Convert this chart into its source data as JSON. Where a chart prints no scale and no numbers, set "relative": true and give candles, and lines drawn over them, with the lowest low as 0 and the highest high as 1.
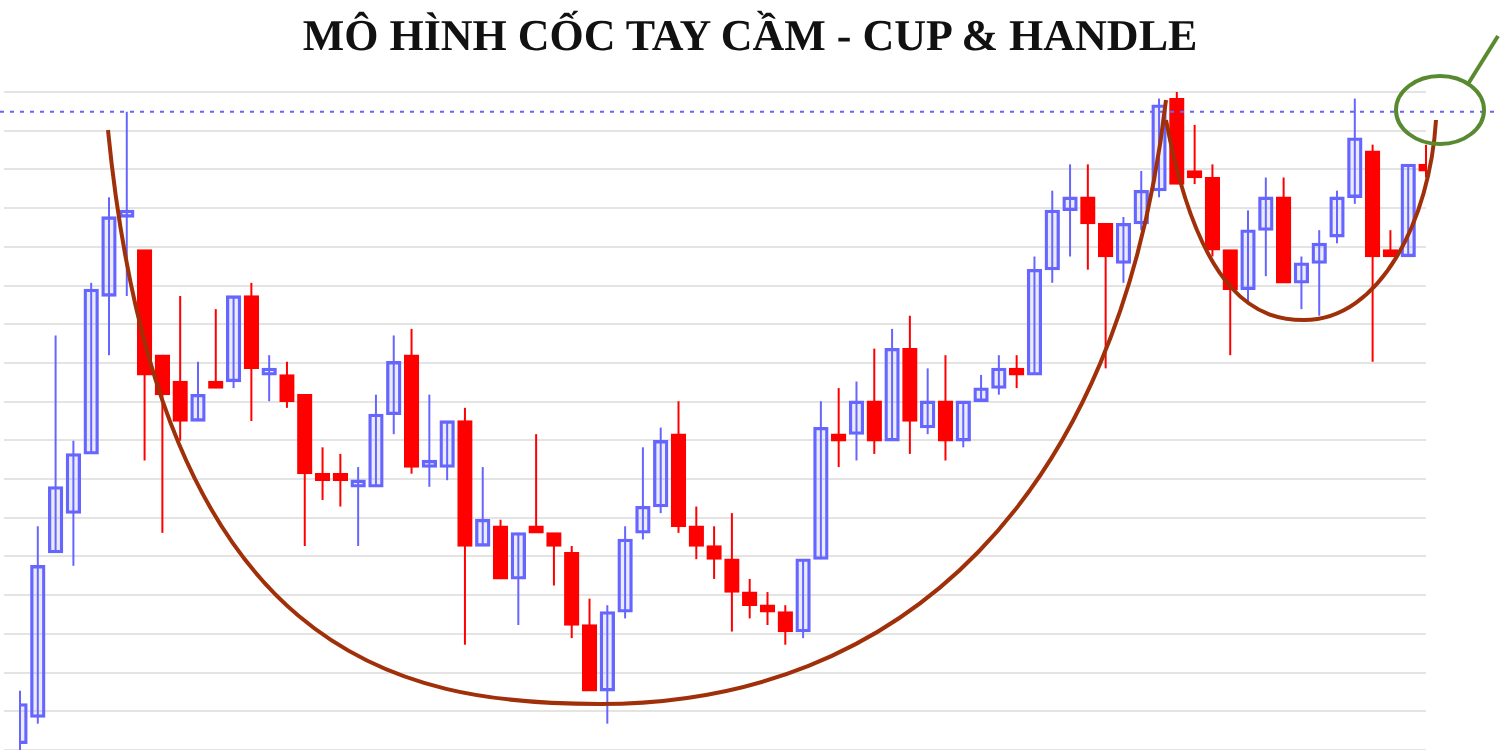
{
  "chart_data": {
    "type": "candlestick",
    "title": "MÔ HÌNH CỐC TAY CẦM - CUP & HANDLE",
    "relative": true,
    "grid": "y",
    "categories": [
      null,
      null,
      null,
      null,
      null,
      null,
      null,
      null,
      null,
      null,
      null,
      null,
      null,
      null,
      null,
      null,
      null,
      null,
      null,
      null,
      null,
      null,
      null,
      null,
      null,
      null,
      null,
      null,
      null,
      null,
      null,
      null,
      null,
      null,
      null,
      null,
      null,
      null,
      null,
      null,
      null,
      null,
      null,
      null,
      null,
      null,
      null,
      null,
      null,
      null,
      null,
      null,
      null,
      null,
      null,
      null,
      null,
      null,
      null,
      null,
      null,
      null,
      null,
      null,
      null,
      null,
      null,
      null,
      null,
      null,
      null,
      null,
      null,
      null,
      null,
      null,
      null,
      null,
      null,
      null
    ],
    "ohlc": [
      [
        0.01,
        0.09,
        0,
        0.07
      ],
      [
        0.05,
        0.34,
        0.04,
        0.28
      ],
      [
        0.3,
        0.63,
        0.3,
        0.4
      ],
      [
        0.36,
        0.47,
        0.28,
        0.45
      ],
      [
        0.45,
        0.71,
        0.45,
        0.7
      ],
      [
        0.69,
        0.84,
        0.6,
        0.81
      ],
      [
        0.81,
        0.97,
        0.69,
        0.82
      ],
      [
        0.76,
        0.76,
        0.44,
        0.57
      ],
      [
        0.6,
        0.6,
        0.33,
        0.54
      ],
      [
        0.56,
        0.69,
        0.47,
        0.5
      ],
      [
        0.5,
        0.59,
        0.5,
        0.54
      ],
      [
        0.56,
        0.67,
        0.55,
        0.55
      ],
      [
        0.56,
        0.69,
        0.55,
        0.69
      ],
      [
        0.69,
        0.71,
        0.5,
        0.58
      ],
      [
        0.57,
        0.6,
        0.53,
        0.58
      ],
      [
        0.57,
        0.59,
        0.52,
        0.53
      ],
      [
        0.54,
        0.54,
        0.31,
        0.42
      ],
      [
        0.42,
        0.46,
        0.38,
        0.41
      ],
      [
        0.42,
        0.45,
        0.37,
        0.41
      ],
      [
        0.4,
        0.43,
        0.31,
        0.41
      ],
      [
        0.4,
        0.54,
        0.4,
        0.51
      ],
      [
        0.51,
        0.63,
        0.48,
        0.59
      ],
      [
        0.6,
        0.64,
        0.42,
        0.43
      ],
      [
        0.43,
        0.54,
        0.4,
        0.44
      ],
      [
        0.43,
        0.5,
        0.41,
        0.5
      ],
      [
        0.5,
        0.52,
        0.16,
        0.31
      ],
      [
        0.31,
        0.43,
        0.31,
        0.35
      ],
      [
        0.34,
        0.35,
        0.26,
        0.26
      ],
      [
        0.26,
        0.33,
        0.19,
        0.33
      ],
      [
        0.34,
        0.48,
        0.33,
        0.33
      ],
      [
        0.33,
        0.33,
        0.25,
        0.31
      ],
      [
        0.3,
        0.31,
        0.17,
        0.19
      ],
      [
        0.19,
        0.23,
        0.09,
        0.09
      ],
      [
        0.09,
        0.22,
        0.04,
        0.21
      ],
      [
        0.21,
        0.34,
        0.2,
        0.32
      ],
      [
        0.33,
        0.46,
        0.32,
        0.37
      ],
      [
        0.37,
        0.49,
        0.36,
        0.47
      ],
      [
        0.48,
        0.53,
        0.33,
        0.34
      ],
      [
        0.34,
        0.37,
        0.29,
        0.31
      ],
      [
        0.31,
        0.34,
        0.26,
        0.29
      ],
      [
        0.29,
        0.36,
        0.18,
        0.24
      ],
      [
        0.24,
        0.26,
        0.2,
        0.22
      ],
      [
        0.22,
        0.24,
        0.19,
        0.21
      ],
      [
        0.21,
        0.22,
        0.16,
        0.18
      ],
      [
        0.18,
        0.29,
        0.17,
        0.29
      ],
      [
        0.29,
        0.53,
        0.29,
        0.49
      ],
      [
        0.48,
        0.55,
        0.43,
        0.47
      ],
      [
        0.48,
        0.56,
        0.44,
        0.53
      ],
      [
        0.53,
        0.61,
        0.45,
        0.47
      ],
      [
        0.47,
        0.64,
        0.47,
        0.61
      ],
      [
        0.61,
        0.66,
        0.45,
        0.5
      ],
      [
        0.49,
        0.58,
        0.48,
        0.53
      ],
      [
        0.53,
        0.6,
        0.44,
        0.47
      ],
      [
        0.47,
        0.53,
        0.46,
        0.53
      ],
      [
        0.53,
        0.57,
        0.53,
        0.55
      ],
      [
        0.55,
        0.6,
        0.54,
        0.58
      ],
      [
        0.58,
        0.6,
        0.55,
        0.57
      ],
      [
        0.57,
        0.75,
        0.57,
        0.73
      ],
      [
        0.73,
        0.85,
        0.71,
        0.82
      ],
      [
        0.82,
        0.89,
        0.75,
        0.84
      ],
      [
        0.84,
        0.89,
        0.73,
        0.8
      ],
      [
        0.8,
        0.8,
        0.58,
        0.75
      ],
      [
        0.74,
        0.81,
        0.71,
        0.8
      ],
      [
        0.8,
        0.88,
        0.79,
        0.85
      ],
      [
        0.85,
        0.99,
        0.84,
        0.98
      ],
      [
        0.99,
        1,
        0.86,
        0.86
      ],
      [
        0.88,
        0.95,
        0.86,
        0.87
      ],
      [
        0.87,
        0.89,
        0.75,
        0.76
      ],
      [
        0.76,
        0.76,
        0.6,
        0.7
      ],
      [
        0.7,
        0.82,
        0.68,
        0.79
      ],
      [
        0.79,
        0.87,
        0.72,
        0.84
      ],
      [
        0.84,
        0.87,
        0.71,
        0.71
      ],
      [
        0.71,
        0.75,
        0.67,
        0.74
      ],
      [
        0.74,
        0.79,
        0.66,
        0.77
      ],
      [
        0.78,
        0.85,
        0.77,
        0.84
      ],
      [
        0.84,
        0.99,
        0.83,
        0.93
      ],
      [
        0.91,
        0.92,
        0.59,
        0.75
      ],
      [
        0.76,
        0.79,
        0.75,
        0.75
      ],
      [
        0.75,
        0.89,
        0.75,
        0.89
      ],
      [
        0.89,
        0.92,
        0.87,
        0.88
      ]
    ],
    "colors": [
      "#6666ff",
      "#6666ff",
      "#6666ff",
      "#6666ff",
      "#6666ff",
      "#6666ff",
      "#6666ff",
      "#ff0000",
      "#ff0000",
      "#ff0000",
      "#6666ff",
      "#ff0000",
      "#6666ff",
      "#ff0000",
      "#6666ff",
      "#ff0000",
      "#ff0000",
      "#ff0000",
      "#ff0000",
      "#6666ff",
      "#6666ff",
      "#6666ff",
      "#ff0000",
      "#6666ff",
      "#6666ff",
      "#ff0000",
      "#6666ff",
      "#ff0000",
      "#6666ff",
      "#ff0000",
      "#ff0000",
      "#ff0000",
      "#ff0000",
      "#6666ff",
      "#6666ff",
      "#6666ff",
      "#6666ff",
      "#ff0000",
      "#ff0000",
      "#ff0000",
      "#ff0000",
      "#ff0000",
      "#ff0000",
      "#ff0000",
      "#6666ff",
      "#6666ff",
      "#ff0000",
      "#6666ff",
      "#ff0000",
      "#6666ff",
      "#ff0000",
      "#6666ff",
      "#ff0000",
      "#6666ff",
      "#6666ff",
      "#6666ff",
      "#ff0000",
      "#6666ff",
      "#6666ff",
      "#6666ff",
      "#ff0000",
      "#ff0000",
      "#6666ff",
      "#6666ff",
      "#6666ff",
      "#ff0000",
      "#ff0000",
      "#ff0000",
      "#ff0000",
      "#6666ff",
      "#6666ff",
      "#ff0000",
      "#6666ff",
      "#6666ff",
      "#6666ff",
      "#6666ff",
      "#ff0000",
      "#ff0000",
      "#6666ff",
      "#ff0000"
    ],
    "ref_lines": [
      {
        "axis": "y",
        "value": 0.97,
        "color": "#6666ff",
        "line_style": "dotted"
      }
    ]
  }
}
